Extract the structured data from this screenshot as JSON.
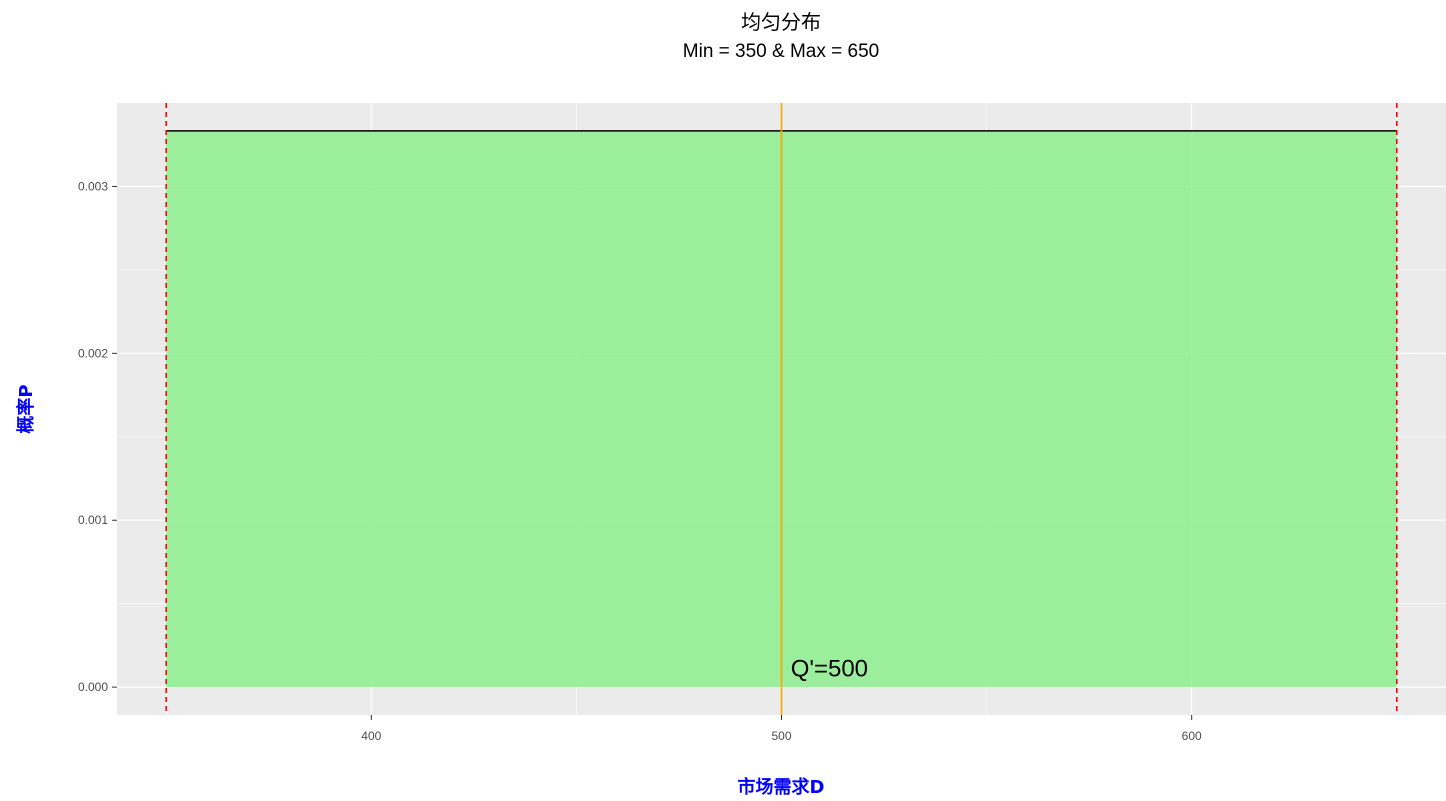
{
  "chart_data": {
    "type": "area",
    "title": "均匀分布",
    "subtitle": "Min = 350 & Max = 650",
    "xlabel": "市场需求D",
    "ylabel": "概率P",
    "xlim": [
      338,
      662
    ],
    "ylim": [
      -0.000167,
      0.0035
    ],
    "x_ticks": [
      400,
      500,
      600
    ],
    "y_ticks": [
      0.0,
      0.001,
      0.002,
      0.003
    ],
    "x_tick_labels": [
      "400",
      "500",
      "600"
    ],
    "y_tick_labels": [
      "0.000",
      "0.001",
      "0.002",
      "0.003"
    ],
    "grid": true,
    "legend": "none",
    "series": [
      {
        "x": [
          350,
          650
        ],
        "y": [
          0.003333,
          0.003333
        ]
      }
    ],
    "vlines": [
      {
        "x": 350,
        "color": "#ff0000",
        "style": "dashed"
      },
      {
        "x": 650,
        "color": "#ff0000",
        "style": "dashed"
      },
      {
        "x": 500,
        "color": "#ffa500",
        "style": "solid"
      }
    ],
    "annotation": {
      "text": "Q'=500",
      "x": 502,
      "y": 0.0001
    }
  },
  "colors": {
    "panel_bg": "#ebebeb",
    "grid": "#ffffff",
    "area_fill": "#90ee90",
    "density_line": "#000000",
    "bound_line": "#ff0000",
    "q_line": "#ffa500",
    "axis_title": "#0000ff",
    "tick_text": "#4d4d4d"
  }
}
